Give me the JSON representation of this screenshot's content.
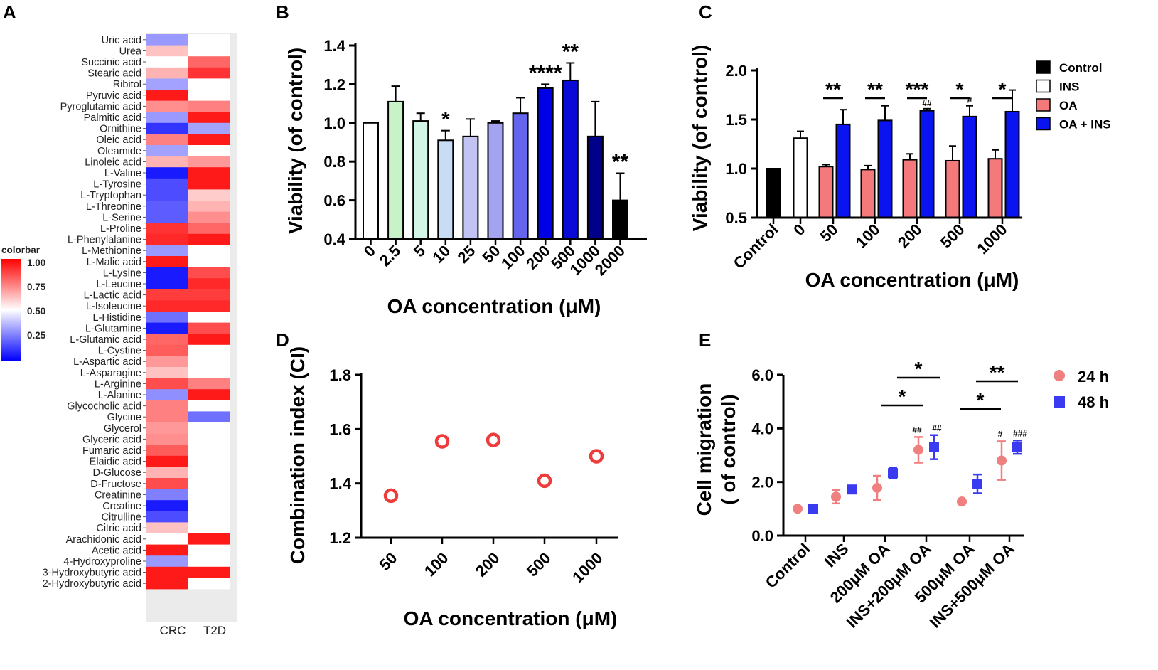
{
  "panels": {
    "A": "A",
    "B": "B",
    "C": "C",
    "D": "D",
    "E": "E"
  },
  "colors": {
    "hm_low": "#0000ff",
    "hm_mid": "#ffffff",
    "hm_high": "#ff0000",
    "oa": "#f4797a",
    "oa_ins": "#0a14f0",
    "red_circle": "#ee3b3b",
    "pink_24h": "#f07f80",
    "blue_48h": "#3a3af0"
  },
  "chart_data": [
    {
      "panel": "A",
      "type": "heatmap",
      "columns": [
        "CRC",
        "T2D"
      ],
      "rows": [
        "Uric acid",
        "Urea",
        "Succinic acid",
        "Stearic acid",
        "Ribitol",
        "Pyruvic acid",
        "Pyroglutamic acid",
        "Palmitic acid",
        "Ornithine",
        "Oleic acid",
        "Oleamide",
        "Linoleic acid",
        "L-Valine",
        "L-Tyrosine",
        "L-Tryptophan",
        "L-Threonine",
        "L-Serine",
        "L-Proline",
        "L-Phenylalanine",
        "L-Methionine",
        "L-Malic acid",
        "L-Lysine",
        "L-Leucine",
        "L-Lactic acid",
        "L-Isoleucine",
        "L-Histidine",
        "L-Glutamine",
        "L-Glutamic acid",
        "L-Cystine",
        "L-Aspartic acid",
        "L-Asparagine",
        "L-Arginine",
        "L-Alanine",
        "Glycocholic acid",
        "Glycine",
        "Glycerol",
        "Glyceric acid",
        "Fumaric acid",
        "Elaidic acid",
        "D-Glucose",
        "D-Fructose",
        "Creatinine",
        "Creatine",
        "Citrulline",
        "Citric acid",
        "Arachidonic acid",
        "Acetic acid",
        "4-Hydroxyproline",
        "3-Hydroxybutyric acid",
        "2-Hydroxybutyric acid"
      ],
      "values": [
        [
          0.3,
          0.5
        ],
        [
          0.62,
          0.5
        ],
        [
          0.5,
          0.8
        ],
        [
          0.65,
          0.9
        ],
        [
          0.32,
          0.5
        ],
        [
          0.95,
          0.5
        ],
        [
          0.72,
          0.75
        ],
        [
          0.3,
          0.95
        ],
        [
          0.1,
          0.32
        ],
        [
          0.75,
          0.95
        ],
        [
          0.32,
          0.5
        ],
        [
          0.65,
          0.7
        ],
        [
          0.05,
          0.95
        ],
        [
          0.15,
          0.95
        ],
        [
          0.15,
          0.6
        ],
        [
          0.18,
          0.65
        ],
        [
          0.18,
          0.72
        ],
        [
          0.9,
          0.8
        ],
        [
          0.92,
          0.95
        ],
        [
          0.3,
          0.5
        ],
        [
          0.95,
          0.5
        ],
        [
          0.05,
          0.85
        ],
        [
          0.05,
          0.92
        ],
        [
          0.88,
          0.88
        ],
        [
          0.92,
          0.92
        ],
        [
          0.22,
          0.5
        ],
        [
          0.05,
          0.85
        ],
        [
          0.8,
          0.95
        ],
        [
          0.82,
          0.5
        ],
        [
          0.7,
          0.5
        ],
        [
          0.62,
          0.5
        ],
        [
          0.85,
          0.75
        ],
        [
          0.28,
          0.95
        ],
        [
          0.75,
          0.5
        ],
        [
          0.75,
          0.22
        ],
        [
          0.7,
          0.5
        ],
        [
          0.72,
          0.5
        ],
        [
          0.82,
          0.5
        ],
        [
          0.95,
          0.5
        ],
        [
          0.65,
          0.5
        ],
        [
          0.85,
          0.5
        ],
        [
          0.25,
          0.5
        ],
        [
          0.05,
          0.5
        ],
        [
          0.15,
          0.5
        ],
        [
          0.62,
          0.5
        ],
        [
          0.5,
          0.95
        ],
        [
          0.95,
          0.5
        ],
        [
          0.3,
          0.5
        ],
        [
          0.95,
          0.95
        ],
        [
          0.95,
          0.5
        ]
      ],
      "colorbar": {
        "title": "colorbar",
        "ticks": [
          "1.00",
          "0.75",
          "0.50",
          "0.25"
        ],
        "range": [
          0,
          1
        ]
      }
    },
    {
      "panel": "B",
      "type": "bar",
      "categories": [
        "0",
        "2.5",
        "5",
        "10",
        "25",
        "50",
        "100",
        "200",
        "500",
        "1000",
        "2000"
      ],
      "values": [
        1.0,
        1.11,
        1.01,
        0.91,
        0.93,
        1.0,
        1.05,
        1.18,
        1.22,
        0.93,
        0.6
      ],
      "errors": [
        0,
        0.08,
        0.04,
        0.05,
        0.09,
        0.01,
        0.08,
        0.02,
        0.09,
        0.18,
        0.14
      ],
      "bar_colors": [
        "#ffffff",
        "#c8f2c8",
        "#d2f5e5",
        "#c8dcf6",
        "#c3c3f3",
        "#a3a3f0",
        "#6464ec",
        "#0000e6",
        "#0a0ad6",
        "#000088",
        "#000000"
      ],
      "significance": [
        "",
        "",
        "",
        "*",
        "",
        "",
        "",
        "****",
        "**",
        "",
        "**"
      ],
      "ylabel": "Viability (of control)",
      "xlabel": "OA concentration (μM)",
      "ylim": [
        0.4,
        1.4
      ],
      "yticks": [
        "0.4",
        "0.6",
        "0.8",
        "1.0",
        "1.2",
        "1.4"
      ]
    },
    {
      "panel": "C",
      "type": "bar",
      "categories": [
        "Control",
        "0",
        "50",
        "100",
        "200",
        "500",
        "1000"
      ],
      "series": [
        {
          "name": "Control",
          "values": [
            1.0,
            null,
            null,
            null,
            null,
            null,
            null
          ],
          "errors": [
            0,
            null,
            null,
            null,
            null,
            null,
            null
          ]
        },
        {
          "name": "INS",
          "values": [
            null,
            1.31,
            null,
            null,
            null,
            null,
            null
          ],
          "errors": [
            null,
            0.07,
            null,
            null,
            null,
            null,
            null
          ]
        },
        {
          "name": "OA",
          "values": [
            null,
            null,
            1.02,
            0.99,
            1.09,
            1.08,
            1.1
          ],
          "errors": [
            null,
            null,
            0.02,
            0.04,
            0.06,
            0.15,
            0.09
          ]
        },
        {
          "name": "OA + INS",
          "values": [
            null,
            null,
            1.45,
            1.49,
            1.59,
            1.53,
            1.58
          ],
          "errors": [
            null,
            null,
            0.15,
            0.15,
            0.02,
            0.11,
            0.22
          ]
        }
      ],
      "significance": [
        "**",
        "**",
        "***",
        "*",
        "*"
      ],
      "hash_marks": [
        "",
        "",
        "##",
        "#",
        ""
      ],
      "ylabel": "Viability (of control)",
      "xlabel": "OA concentration (μM)",
      "ylim": [
        0.5,
        2.0
      ],
      "yticks": [
        "0.5",
        "1.0",
        "1.5",
        "2.0"
      ]
    },
    {
      "panel": "D",
      "type": "scatter",
      "x": [
        "50",
        "100",
        "200",
        "500",
        "1000"
      ],
      "y": [
        1.355,
        1.555,
        1.56,
        1.41,
        1.5
      ],
      "ylabel": "Combination index (CI)",
      "xlabel": "OA concentration (μM)",
      "ylim": [
        1.2,
        1.8
      ],
      "yticks": [
        "1.2",
        "1.4",
        "1.6",
        "1.8"
      ]
    },
    {
      "panel": "E",
      "type": "scatter",
      "categories": [
        "Control",
        "INS",
        "200μM OA",
        "INS+200μM OA",
        "500μM OA",
        "INS+500μM OA"
      ],
      "series": [
        {
          "name": "24 h",
          "values": [
            1.0,
            1.45,
            1.78,
            3.2,
            1.27,
            2.8
          ],
          "errors": [
            0,
            0.25,
            0.45,
            0.48,
            0,
            0.72
          ]
        },
        {
          "name": "48 h",
          "values": [
            1.0,
            1.72,
            2.33,
            3.3,
            1.93,
            3.3
          ],
          "errors": [
            0,
            0.1,
            0.2,
            0.45,
            0.35,
            0.25
          ]
        }
      ],
      "significance": [
        "*",
        "*",
        "*",
        "**"
      ],
      "hash_24h": [
        "",
        "",
        "",
        "##",
        "",
        "#"
      ],
      "hash_48h": [
        "",
        "",
        "",
        "##",
        "",
        "###"
      ],
      "ylabel_line1": "Cell migration",
      "ylabel_line2": "( of control)",
      "ylim": [
        0,
        6
      ],
      "yticks": [
        "0.0",
        "2.0",
        "4.0",
        "6.0"
      ]
    }
  ]
}
